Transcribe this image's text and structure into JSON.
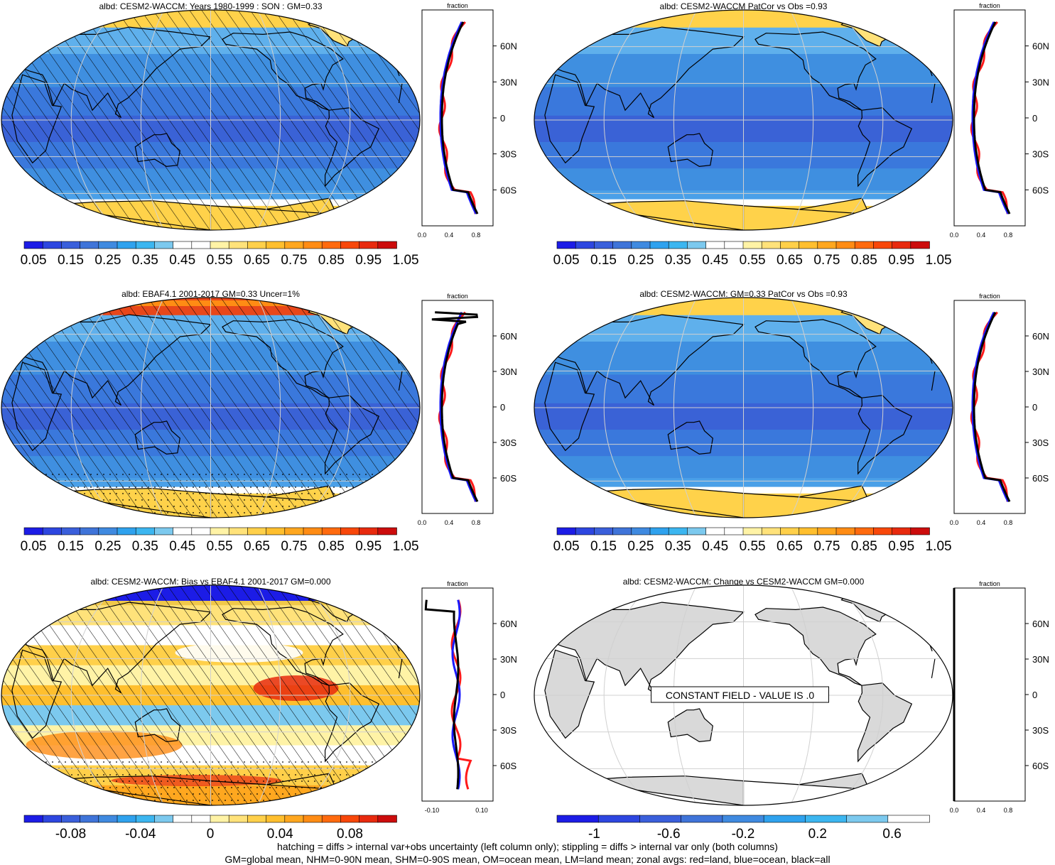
{
  "panels": [
    {
      "id": "p1",
      "title": "albd: CESM2-WACCM: Years 1980-1999 : SON : GM=0.33",
      "scheme": "model",
      "hatch": true,
      "stipple": false,
      "colorbar": "abs",
      "zonal": "abs"
    },
    {
      "id": "p2",
      "title": "albd: CESM2-WACCM PatCor vs Obs =0.93",
      "scheme": "model",
      "hatch": false,
      "stipple": false,
      "colorbar": "abs",
      "zonal": "abs"
    },
    {
      "id": "p3",
      "title": "albd: EBAF4.1 2001-2017 GM=0.33 Uncer=1%",
      "scheme": "obs",
      "hatch": true,
      "stipple": true,
      "colorbar": "abs",
      "zonal": "obs"
    },
    {
      "id": "p4",
      "title": "albd: CESM2-WACCM: GM=0.33 PatCor vs Obs =0.93",
      "scheme": "model",
      "hatch": false,
      "stipple": false,
      "colorbar": "abs",
      "zonal": "abs"
    },
    {
      "id": "p5",
      "title": "albd: CESM2-WACCM: Bias vs EBAF4.1 2001-2017  GM=0.000",
      "scheme": "bias",
      "hatch": true,
      "stipple": true,
      "colorbar": "bias",
      "zonal": "bias"
    },
    {
      "id": "p6",
      "title": "albd: CESM2-WACCM: Change vs CESM2-WACCM GM=0.000",
      "scheme": "const",
      "hatch": false,
      "stipple": false,
      "colorbar": "change",
      "zonal": "change",
      "message": "CONSTANT FIELD - VALUE IS .0"
    }
  ],
  "zonal_axis": {
    "title": "fraction",
    "lat_labels": [
      "60N",
      "30N",
      "0",
      "30S",
      "60S"
    ],
    "x_ticks_abs": [
      "0.0",
      "0.4",
      "0.8"
    ],
    "x_ticks_bias": [
      "-0.10",
      "0.10"
    ]
  },
  "colorbars": {
    "abs": {
      "labels": [
        "0.05",
        "0.15",
        "0.25",
        "0.35",
        "0.45",
        "0.55",
        "0.65",
        "0.75",
        "0.85",
        "0.95",
        "1.05"
      ],
      "colors": [
        "#1c1ce6",
        "#2d46e0",
        "#3a5fdb",
        "#3f74d9",
        "#3f8ae0",
        "#2fa2ee",
        "#3cb6f0",
        "#7cc9ee",
        "#ffffff",
        "#ffffff",
        "#fff3a6",
        "#ffe27a",
        "#ffd04a",
        "#ffbf2e",
        "#ffa71f",
        "#ff8c14",
        "#ff6a0e",
        "#f8470a",
        "#e82a0e",
        "#cc0c0c"
      ]
    },
    "bias": {
      "labels": [
        "-0.08",
        "-0.04",
        "0",
        "0.04",
        "0.08"
      ],
      "colors": [
        "#1c1ce6",
        "#2d46e0",
        "#3a5fdb",
        "#3f74d9",
        "#3f8ae0",
        "#2fa2ee",
        "#3cb6f0",
        "#7cc9ee",
        "#ffffff",
        "#ffffff",
        "#fff3a6",
        "#ffe27a",
        "#ffd04a",
        "#ffbf2e",
        "#ffa71f",
        "#ff8c14",
        "#ff6a0e",
        "#f8470a",
        "#e82a0e",
        "#cc0c0c"
      ]
    },
    "change": {
      "labels": [
        "-1",
        "-0.6",
        "-0.2",
        "0.2",
        "0.6"
      ],
      "colors": [
        "#1c1ce6",
        "#2d46e0",
        "#3a5fdb",
        "#3f74d9",
        "#3f8ae0",
        "#2fa2ee",
        "#3cb6f0",
        "#7cc9ee",
        "#ffffff"
      ]
    }
  },
  "footer": {
    "line1": "hatching = diffs > internal var+obs uncertainty (left column only); stippling = diffs > internal var only (both columns)",
    "line2": "GM=global mean, NHM=0-90N mean, SHM=0-90S mean, OM=ocean mean, LM=land mean; zonal avgs: red=land, blue=ocean, black=all"
  },
  "colors": {
    "ocean_model": "#3f8fe0",
    "ocean_dark": "#3a62d6",
    "ocean_light": "#5fb0ec",
    "ice": "#ffd24a",
    "land_line": "#000000",
    "land_const": "#d9d9d9",
    "zonal_land": "#ff1a1a",
    "zonal_ocean": "#1a1aff",
    "zonal_all": "#000000"
  }
}
